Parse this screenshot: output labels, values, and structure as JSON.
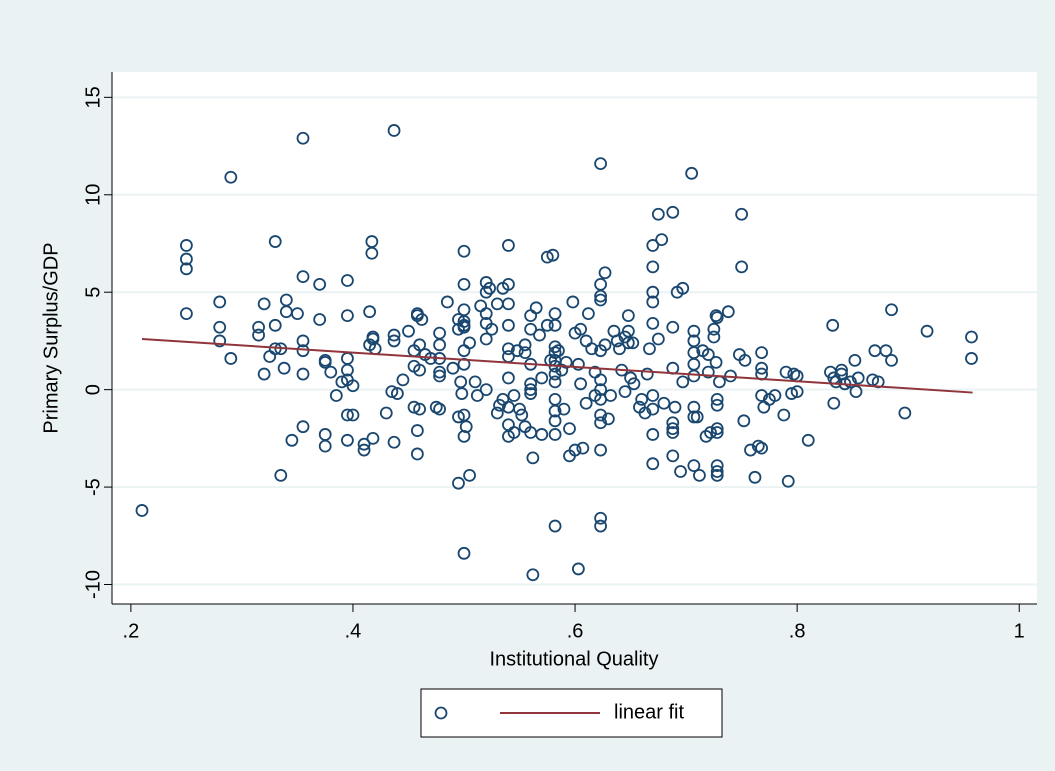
{
  "chart_data": {
    "type": "scatter",
    "x_label": "Institutional Quality",
    "y_label": "Primary Surplus/GDP",
    "xlim": [
      0.183,
      1.016
    ],
    "ylim": [
      -11.0,
      16.3
    ],
    "xticks": [
      {
        "value": 0.2,
        "label": ".2"
      },
      {
        "value": 0.4,
        "label": ".4"
      },
      {
        "value": 0.6,
        "label": ".6"
      },
      {
        "value": 0.8,
        "label": ".8"
      },
      1
    ],
    "yticks": [
      -10,
      -5,
      0,
      5,
      10,
      15
    ],
    "grid": true,
    "legend": "bottom",
    "series": [
      {
        "type": "scatter",
        "color": "#1a476f",
        "x": [
          0.21,
          0.25,
          0.25,
          0.25,
          0.25,
          0.29,
          0.29,
          0.28,
          0.28,
          0.28,
          0.315,
          0.315,
          0.32,
          0.32,
          0.33,
          0.33,
          0.325,
          0.33,
          0.335,
          0.335,
          0.338,
          0.34,
          0.34,
          0.345,
          0.35,
          0.355,
          0.355,
          0.355,
          0.355,
          0.355,
          0.355,
          0.37,
          0.37,
          0.375,
          0.375,
          0.375,
          0.375,
          0.38,
          0.385,
          0.39,
          0.395,
          0.395,
          0.395,
          0.395,
          0.395,
          0.395,
          0.395,
          0.4,
          0.4,
          0.41,
          0.41,
          0.415,
          0.415,
          0.418,
          0.418,
          0.417,
          0.417,
          0.418,
          0.42,
          0.43,
          0.435,
          0.437,
          0.437,
          0.44,
          0.437,
          0.437,
          0.445,
          0.45,
          0.455,
          0.455,
          0.455,
          0.458,
          0.458,
          0.46,
          0.46,
          0.458,
          0.458,
          0.46,
          0.462,
          0.465,
          0.47,
          0.475,
          0.478,
          0.478,
          0.478,
          0.478,
          0.478,
          0.478,
          0.485,
          0.49,
          0.495,
          0.495,
          0.495,
          0.495,
          0.497,
          0.498,
          0.5,
          0.5,
          0.5,
          0.5,
          0.5,
          0.5,
          0.5,
          0.5,
          0.5,
          0.5,
          0.5,
          0.502,
          0.505,
          0.505,
          0.51,
          0.512,
          0.515,
          0.52,
          0.52,
          0.52,
          0.52,
          0.52,
          0.52,
          0.523,
          0.525,
          0.53,
          0.53,
          0.532,
          0.535,
          0.535,
          0.54,
          0.54,
          0.54,
          0.54,
          0.54,
          0.54,
          0.54,
          0.54,
          0.54,
          0.54,
          0.545,
          0.545,
          0.548,
          0.55,
          0.552,
          0.555,
          0.555,
          0.555,
          0.56,
          0.56,
          0.56,
          0.56,
          0.56,
          0.56,
          0.56,
          0.562,
          0.562,
          0.565,
          0.568,
          0.57,
          0.57,
          0.575,
          0.575,
          0.578,
          0.58,
          0.582,
          0.582,
          0.582,
          0.582,
          0.582,
          0.582,
          0.582,
          0.582,
          0.582,
          0.582,
          0.582,
          0.582,
          0.582,
          0.585,
          0.588,
          0.59,
          0.592,
          0.595,
          0.595,
          0.598,
          0.6,
          0.6,
          0.603,
          0.603,
          0.605,
          0.605,
          0.607,
          0.61,
          0.61,
          0.612,
          0.615,
          0.618,
          0.618,
          0.623,
          0.623,
          0.623,
          0.623,
          0.623,
          0.623,
          0.623,
          0.623,
          0.623,
          0.623,
          0.623,
          0.623,
          0.623,
          0.627,
          0.627,
          0.63,
          0.632,
          0.635,
          0.638,
          0.64,
          0.642,
          0.645,
          0.645,
          0.648,
          0.648,
          0.648,
          0.65,
          0.652,
          0.653,
          0.658,
          0.66,
          0.663,
          0.665,
          0.667,
          0.67,
          0.67,
          0.67,
          0.67,
          0.67,
          0.67,
          0.67,
          0.67,
          0.67,
          0.675,
          0.678,
          0.675,
          0.68,
          0.688,
          0.688,
          0.688,
          0.688,
          0.688,
          0.688,
          0.688,
          0.69,
          0.692,
          0.695,
          0.697,
          0.697,
          0.705,
          0.707,
          0.707,
          0.707,
          0.707,
          0.707,
          0.707,
          0.707,
          0.707,
          0.71,
          0.712,
          0.715,
          0.718,
          0.72,
          0.72,
          0.722,
          0.725,
          0.725,
          0.727,
          0.727,
          0.728,
          0.728,
          0.728,
          0.728,
          0.728,
          0.728,
          0.728,
          0.728,
          0.73,
          0.738,
          0.74,
          0.748,
          0.75,
          0.75,
          0.752,
          0.753,
          0.758,
          0.762,
          0.765,
          0.768,
          0.768,
          0.768,
          0.768,
          0.768,
          0.77,
          0.775,
          0.78,
          0.788,
          0.79,
          0.792,
          0.795,
          0.797,
          0.8,
          0.8,
          0.81,
          0.83,
          0.832,
          0.833,
          0.835,
          0.833,
          0.84,
          0.84,
          0.843,
          0.848,
          0.852,
          0.853,
          0.855,
          0.868,
          0.87,
          0.873,
          0.88,
          0.885,
          0.885,
          0.897,
          0.917,
          0.957,
          0.957
        ],
        "values": [
          -6.2,
          7.4,
          6.7,
          6.2,
          3.9,
          10.9,
          1.6,
          4.5,
          3.2,
          2.5,
          3.2,
          2.8,
          4.4,
          0.8,
          7.6,
          3.3,
          1.7,
          2.1,
          2.1,
          -4.4,
          1.1,
          4.6,
          4.0,
          -2.6,
          3.9,
          12.9,
          5.8,
          2.5,
          2.0,
          0.8,
          -1.9,
          5.4,
          3.6,
          1.5,
          1.4,
          -2.3,
          -2.9,
          0.9,
          -0.3,
          0.4,
          5.6,
          3.8,
          1.6,
          1.0,
          0.5,
          -1.3,
          -2.6,
          0.2,
          -1.3,
          -2.8,
          -3.1,
          2.3,
          4.0,
          2.7,
          2.6,
          7.6,
          7.0,
          -2.5,
          2.1,
          -1.2,
          -0.1,
          13.3,
          2.8,
          -0.2,
          2.5,
          -2.7,
          0.5,
          3.0,
          2.0,
          1.2,
          -0.9,
          3.9,
          3.8,
          2.3,
          1.0,
          -2.1,
          -3.3,
          -1.0,
          3.6,
          1.8,
          1.6,
          -0.9,
          -1.0,
          2.9,
          2.3,
          1.6,
          0.9,
          0.7,
          4.5,
          1.1,
          3.6,
          3.1,
          -1.4,
          -4.8,
          0.4,
          -0.2,
          7.1,
          5.4,
          4.1,
          3.5,
          3.3,
          3.2,
          2.0,
          1.3,
          -1.3,
          -2.4,
          -8.4,
          -1.9,
          2.4,
          -4.4,
          0.4,
          -0.3,
          4.3,
          3.9,
          5.0,
          5.5,
          3.4,
          2.6,
          0.0,
          5.2,
          3.1,
          4.4,
          -1.2,
          -0.8,
          5.2,
          -0.5,
          7.4,
          5.4,
          4.4,
          3.3,
          2.1,
          1.7,
          0.6,
          -0.9,
          -1.8,
          -2.4,
          -0.3,
          -2.2,
          2.0,
          -1.0,
          -1.3,
          1.9,
          2.3,
          -1.9,
          3.8,
          3.1,
          1.3,
          0.3,
          0.0,
          -0.2,
          -2.2,
          -3.5,
          -9.5,
          4.2,
          2.8,
          0.6,
          -2.3,
          6.8,
          3.3,
          1.5,
          6.9,
          3.9,
          3.3,
          2.2,
          1.9,
          1.5,
          1.2,
          0.8,
          0.4,
          -0.5,
          -1.1,
          -1.6,
          -2.3,
          -7.0,
          2.0,
          1.0,
          -1.0,
          1.4,
          -2.0,
          -3.4,
          4.5,
          2.9,
          -3.1,
          1.3,
          -9.2,
          0.3,
          3.1,
          -3.0,
          -0.7,
          2.5,
          3.9,
          2.1,
          0.9,
          -0.3,
          11.6,
          5.4,
          4.8,
          4.6,
          2.0,
          0.5,
          0.0,
          -0.5,
          -1.3,
          -1.7,
          -3.1,
          -6.6,
          -7.0,
          6.0,
          2.3,
          -1.5,
          -0.3,
          3.0,
          2.5,
          2.1,
          1.0,
          -0.1,
          2.7,
          3.8,
          3.0,
          2.4,
          0.6,
          2.4,
          0.3,
          -0.9,
          -0.5,
          -1.2,
          0.8,
          2.1,
          7.4,
          6.3,
          5.0,
          4.5,
          3.4,
          -1.0,
          -2.3,
          -3.8,
          -0.3,
          9.0,
          7.7,
          2.6,
          -0.7,
          9.1,
          3.2,
          1.1,
          -1.7,
          -2.0,
          -2.2,
          -3.4,
          -0.9,
          5.0,
          -4.2,
          5.2,
          0.4,
          11.1,
          3.0,
          2.5,
          1.9,
          1.3,
          0.7,
          -0.9,
          -1.4,
          -3.9,
          -1.4,
          -4.4,
          2.0,
          -2.4,
          0.9,
          1.8,
          -2.2,
          3.1,
          2.7,
          1.4,
          3.8,
          3.7,
          -0.5,
          -0.8,
          -2.0,
          -2.2,
          -3.9,
          -4.2,
          -4.4,
          0.4,
          4.0,
          0.7,
          1.8,
          9.0,
          6.3,
          -1.6,
          1.5,
          -3.1,
          -4.5,
          -2.9,
          1.9,
          1.1,
          0.8,
          -3.0,
          -0.3,
          -0.9,
          -0.5,
          -0.3,
          -1.3,
          0.9,
          -4.7,
          -0.2,
          0.8,
          0.7,
          -0.1,
          -2.6,
          0.9,
          3.3,
          0.6,
          0.4,
          -0.7,
          0.8,
          1.0,
          0.3,
          0.4,
          1.5,
          -0.1,
          0.6,
          0.5,
          2.0,
          0.4,
          2.0,
          1.5,
          4.1,
          -1.2,
          3.0,
          2.7,
          1.6
        ]
      },
      {
        "type": "line",
        "name": "linear fit",
        "color": "#90353b",
        "x": [
          0.21,
          0.958
        ],
        "values": [
          2.6,
          -0.15
        ]
      }
    ]
  }
}
